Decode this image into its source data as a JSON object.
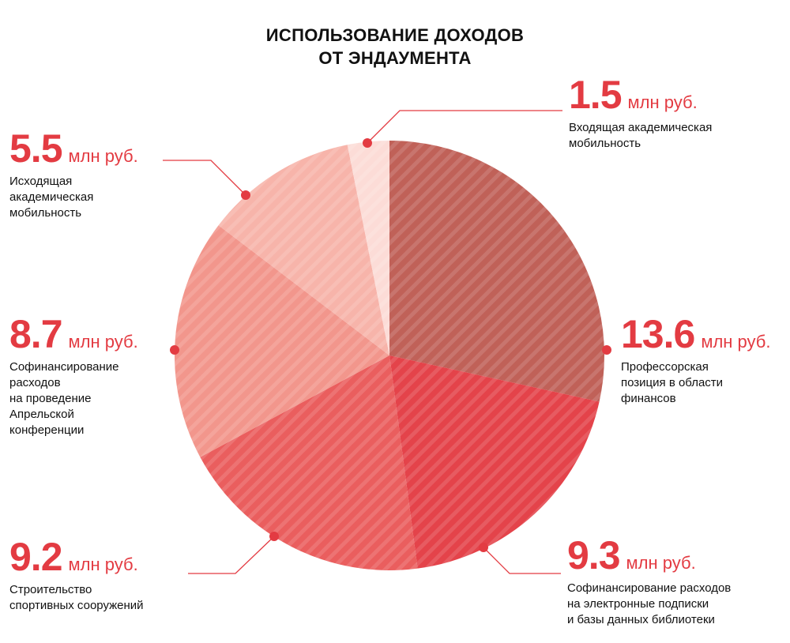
{
  "title_lines": [
    "ИСПОЛЬЗОВАНИЕ ДОХОДОВ",
    "ОТ ЭНДАУМЕНТА"
  ],
  "colors": {
    "accent": "#e33b42",
    "text": "#111111",
    "slices": [
      "#c06158",
      "#e4434a",
      "#ea5e5e",
      "#f2968c",
      "#f7b4aa",
      "#fcdcd7"
    ]
  },
  "chart_data": {
    "type": "pie",
    "unit": "млн руб.",
    "slices": [
      {
        "value": 13.6,
        "value_text": "13.6",
        "label_lines": [
          "Профессорская",
          "позиция в области",
          "финансов"
        ]
      },
      {
        "value": 9.3,
        "value_text": "9.3",
        "label_lines": [
          "Софинансирование расходов",
          "на электронные подписки",
          "и базы данных библиотеки"
        ]
      },
      {
        "value": 9.2,
        "value_text": "9.2",
        "label_lines": [
          "Строительство",
          "спортивных сооружений"
        ]
      },
      {
        "value": 8.7,
        "value_text": "8.7",
        "label_lines": [
          "Софинансирование",
          "расходов",
          "на проведение",
          "Апрельской",
          "конференции"
        ]
      },
      {
        "value": 5.5,
        "value_text": "5.5",
        "label_lines": [
          "Исходящая",
          "академическая",
          "мобильность"
        ]
      },
      {
        "value": 1.5,
        "value_text": "1.5",
        "label_lines": [
          "Входящая академическая",
          "мобильность"
        ]
      }
    ],
    "start": "12 o'clock",
    "direction": "clockwise",
    "legend": "none (callout labels around pie)"
  }
}
